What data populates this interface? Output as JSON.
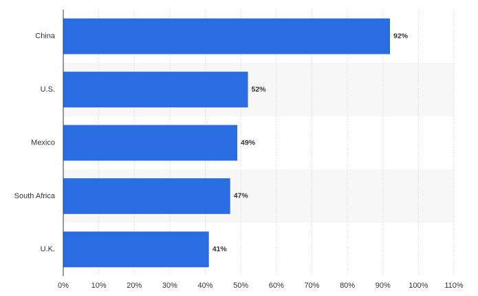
{
  "chart_data": {
    "type": "bar",
    "orientation": "horizontal",
    "categories": [
      "China",
      "U.S.",
      "Mexico",
      "South Africa",
      "U.K."
    ],
    "values": [
      92,
      52,
      49,
      47,
      41
    ],
    "value_labels": [
      "92%",
      "52%",
      "49%",
      "47%",
      "41%"
    ],
    "color": "#2a6de3",
    "xlim": [
      0,
      110
    ],
    "xticks": [
      {
        "value": 0,
        "label": "0%"
      },
      {
        "value": 10,
        "label": "10%"
      },
      {
        "value": 20,
        "label": "20%"
      },
      {
        "value": 30,
        "label": "30%"
      },
      {
        "value": 40,
        "label": "40%"
      },
      {
        "value": 50,
        "label": "50%"
      },
      {
        "value": 60,
        "label": "60%"
      },
      {
        "value": 70,
        "label": "70%"
      },
      {
        "value": 80,
        "label": "80%"
      },
      {
        "value": 90,
        "label": "90%"
      },
      {
        "value": 100,
        "label": "100%"
      },
      {
        "value": 110,
        "label": "110%"
      }
    ],
    "grid": true
  }
}
